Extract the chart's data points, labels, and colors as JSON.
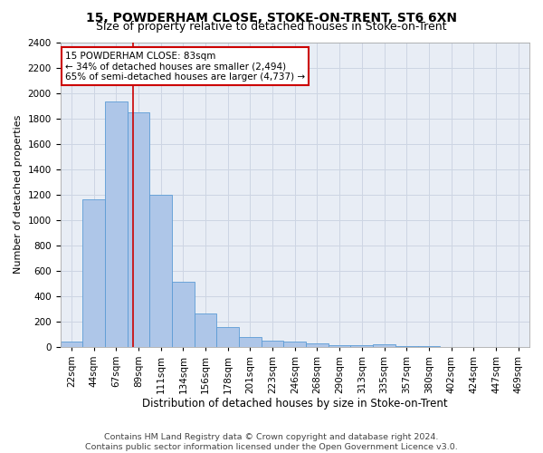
{
  "title": "15, POWDERHAM CLOSE, STOKE-ON-TRENT, ST6 6XN",
  "subtitle": "Size of property relative to detached houses in Stoke-on-Trent",
  "xlabel": "Distribution of detached houses by size in Stoke-on-Trent",
  "ylabel": "Number of detached properties",
  "categories": [
    "22sqm",
    "44sqm",
    "67sqm",
    "89sqm",
    "111sqm",
    "134sqm",
    "156sqm",
    "178sqm",
    "201sqm",
    "223sqm",
    "246sqm",
    "268sqm",
    "290sqm",
    "313sqm",
    "335sqm",
    "357sqm",
    "380sqm",
    "402sqm",
    "424sqm",
    "447sqm",
    "469sqm"
  ],
  "values": [
    40,
    1160,
    1930,
    1850,
    1200,
    510,
    260,
    155,
    75,
    45,
    40,
    30,
    15,
    10,
    20,
    5,
    5,
    2,
    2,
    2,
    2
  ],
  "bar_color": "#aec6e8",
  "bar_edge_color": "#5b9bd5",
  "red_line_x": 2.75,
  "annotation_text": "15 POWDERHAM CLOSE: 83sqm\n← 34% of detached houses are smaller (2,494)\n65% of semi-detached houses are larger (4,737) →",
  "annotation_box_color": "#ffffff",
  "annotation_box_edge_color": "#cc0000",
  "red_line_color": "#cc0000",
  "ylim": [
    0,
    2400
  ],
  "yticks": [
    0,
    200,
    400,
    600,
    800,
    1000,
    1200,
    1400,
    1600,
    1800,
    2000,
    2200,
    2400
  ],
  "grid_color": "#cdd5e3",
  "background_color": "#e8edf5",
  "footer_line1": "Contains HM Land Registry data © Crown copyright and database right 2024.",
  "footer_line2": "Contains public sector information licensed under the Open Government Licence v3.0.",
  "title_fontsize": 10,
  "subtitle_fontsize": 9,
  "xlabel_fontsize": 8.5,
  "ylabel_fontsize": 8,
  "tick_fontsize": 7.5,
  "footer_fontsize": 6.8,
  "annotation_fontsize": 7.5
}
